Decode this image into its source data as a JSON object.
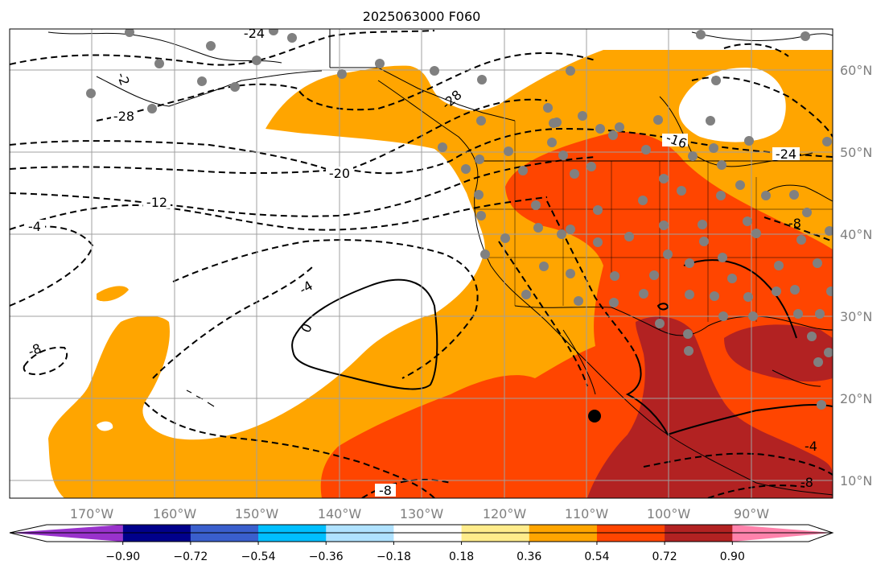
{
  "title": "2025063000 F060",
  "lon_ticks": [
    "170°W",
    "160°W",
    "150°W",
    "140°W",
    "130°W",
    "120°W",
    "110°W",
    "100°W",
    "90°W"
  ],
  "lat_ticks": [
    "60°N",
    "50°N",
    "40°N",
    "30°N",
    "20°N",
    "10°N"
  ],
  "colorbar": {
    "ticks": [
      "−0.90",
      "−0.72",
      "−0.54",
      "−0.36",
      "−0.18",
      "0.18",
      "0.36",
      "0.54",
      "0.72",
      "0.90"
    ],
    "colors": [
      "#9932cc",
      "#00008b",
      "#3a5fcd",
      "#00bfff",
      "#b0e2ff",
      "#ffffff",
      "#ffec8b",
      "#ffa500",
      "#ff4500",
      "#b22222",
      "#ff82ab"
    ]
  },
  "contour_labels": [
    "-24",
    "-2",
    "-28",
    "-28",
    "-16",
    "-24",
    "-20",
    "-12",
    "-4",
    "-4",
    "0",
    "-8",
    "-8",
    "-8",
    "-4",
    "-8"
  ],
  "colors": {
    "orange": "#ffa500",
    "red_orange": "#ff4500",
    "dark_red": "#b22222",
    "station": "#808080",
    "grid": "#a0a0a0"
  }
}
